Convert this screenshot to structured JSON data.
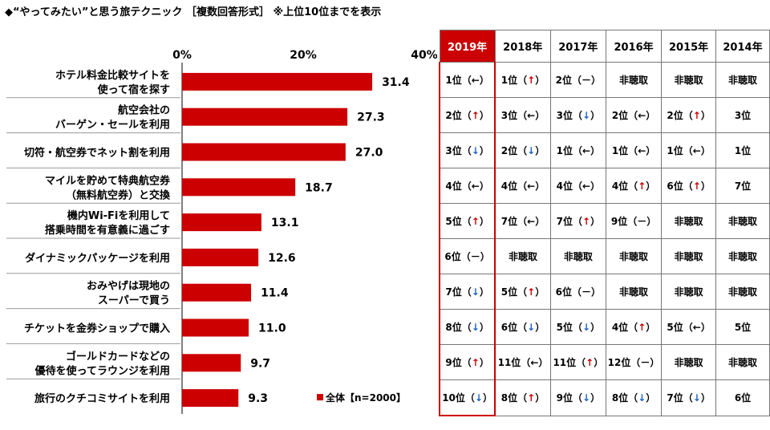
{
  "title": "◆“やってみたい”と思う旅テクニック ［複数回答形式］ ※上位10位までを表示",
  "chart_data": {
    "type": "bar",
    "orientation": "horizontal",
    "categories": [
      [
        "ホテル料金比較サイトを",
        "使って宿を探す"
      ],
      [
        "航空会社の",
        "バーゲン・セールを利用"
      ],
      [
        "切符・航空券でネット割を利用"
      ],
      [
        "マイルを貯めて特典航空券",
        "（無料航空券）と交換"
      ],
      [
        "機内Wi-Fiを利用して",
        "搭乗時間を有意義に過ごす"
      ],
      [
        "ダイナミックパッケージを利用"
      ],
      [
        "おみやげは現地の",
        "スーパーで買う"
      ],
      [
        "チケットを金券ショップで購入"
      ],
      [
        "ゴールドカードなどの",
        "優待を使ってラウンジを利用"
      ],
      [
        "旅行のクチコミサイトを利用"
      ]
    ],
    "values": [
      31.4,
      27.3,
      27.0,
      18.7,
      13.1,
      12.6,
      11.4,
      11.0,
      9.7,
      9.3
    ],
    "value_labels": [
      "31.4",
      "27.3",
      "27.0",
      "18.7",
      "13.1",
      "12.6",
      "11.4",
      "11.0",
      "9.7",
      "9.3"
    ],
    "xlim": [
      0,
      40
    ],
    "ticks": [
      "0%",
      "20%",
      "40%"
    ],
    "tick_values": [
      0,
      20,
      40
    ],
    "grid": false,
    "legend": {
      "label": "全体【n=2000】",
      "placement": "bottom-right"
    },
    "bar_color": "#cc0000"
  },
  "table": {
    "columns": [
      "2019年",
      "2018年",
      "2017年",
      "2016年",
      "2015年",
      "2014年"
    ],
    "rows": [
      [
        [
          "1位",
          "←"
        ],
        [
          "1位",
          "↑"
        ],
        [
          "2位",
          "－"
        ],
        [
          "非聴取",
          ""
        ],
        [
          "非聴取",
          ""
        ],
        [
          "非聴取",
          ""
        ]
      ],
      [
        [
          "2位",
          "↑"
        ],
        [
          "3位",
          "←"
        ],
        [
          "3位",
          "↓"
        ],
        [
          "2位",
          "←"
        ],
        [
          "2位",
          "↑"
        ],
        [
          "3位",
          ""
        ]
      ],
      [
        [
          "3位",
          "↓"
        ],
        [
          "2位",
          "↓"
        ],
        [
          "1位",
          "←"
        ],
        [
          "1位",
          "←"
        ],
        [
          "1位",
          "←"
        ],
        [
          "1位",
          ""
        ]
      ],
      [
        [
          "4位",
          "←"
        ],
        [
          "4位",
          "←"
        ],
        [
          "4位",
          "←"
        ],
        [
          "4位",
          "↑"
        ],
        [
          "6位",
          "↑"
        ],
        [
          "7位",
          ""
        ]
      ],
      [
        [
          "5位",
          "↑"
        ],
        [
          "7位",
          "←"
        ],
        [
          "7位",
          "↑"
        ],
        [
          "9位",
          "－"
        ],
        [
          "非聴取",
          ""
        ],
        [
          "非聴取",
          ""
        ]
      ],
      [
        [
          "6位",
          "－"
        ],
        [
          "非聴取",
          ""
        ],
        [
          "非聴取",
          ""
        ],
        [
          "非聴取",
          ""
        ],
        [
          "非聴取",
          ""
        ],
        [
          "非聴取",
          ""
        ]
      ],
      [
        [
          "7位",
          "↓"
        ],
        [
          "5位",
          "↑"
        ],
        [
          "6位",
          "－"
        ],
        [
          "非聴取",
          ""
        ],
        [
          "非聴取",
          ""
        ],
        [
          "非聴取",
          ""
        ]
      ],
      [
        [
          "8位",
          "↓"
        ],
        [
          "6位",
          "↓"
        ],
        [
          "5位",
          "↓"
        ],
        [
          "4位",
          "↑"
        ],
        [
          "5位",
          "←"
        ],
        [
          "5位",
          ""
        ]
      ],
      [
        [
          "9位",
          "↑"
        ],
        [
          "11位",
          "←"
        ],
        [
          "11位",
          "↑"
        ],
        [
          "12位",
          "－"
        ],
        [
          "非聴取",
          ""
        ],
        [
          "非聴取",
          ""
        ]
      ],
      [
        [
          "10位",
          "↓"
        ],
        [
          "8位",
          "↑"
        ],
        [
          "9位",
          "↓"
        ],
        [
          "8位",
          "↓"
        ],
        [
          "7位",
          "↓"
        ],
        [
          "6位",
          ""
        ]
      ]
    ],
    "highlight_color": "#cc0000",
    "up_color": "#cc0000",
    "down_color": "#1a62c8"
  }
}
